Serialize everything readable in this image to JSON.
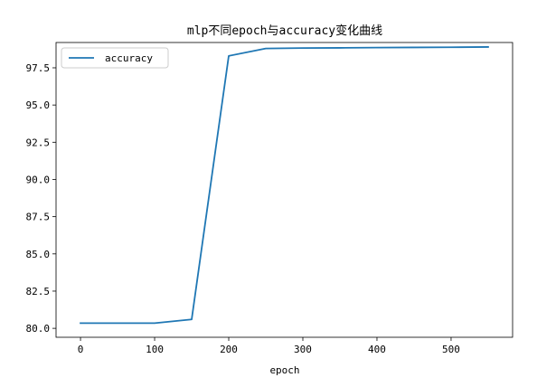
{
  "chart_data": {
    "type": "line",
    "title": "mlp不同epoch与accuracy变化曲线",
    "xlabel": "epoch",
    "ylabel": "",
    "xlim": [
      -33,
      583
    ],
    "ylim": [
      79.4,
      99.2
    ],
    "xticks": [
      0,
      100,
      200,
      300,
      400,
      500
    ],
    "yticks": [
      80.0,
      82.5,
      85.0,
      87.5,
      90.0,
      92.5,
      95.0,
      97.5
    ],
    "ytick_labels": [
      "80.0",
      "82.5",
      "85.0",
      "87.5",
      "90.0",
      "92.5",
      "95.0",
      "97.5"
    ],
    "grid": false,
    "legend": "top-left",
    "series": [
      {
        "name": "accuracy",
        "color": "#1f77b4",
        "x": [
          0,
          50,
          100,
          150,
          200,
          250,
          300,
          350,
          400,
          450,
          500,
          550
        ],
        "y": [
          80.35,
          80.35,
          80.35,
          80.6,
          98.3,
          98.8,
          98.83,
          98.84,
          98.86,
          98.87,
          98.88,
          98.9
        ]
      }
    ]
  }
}
